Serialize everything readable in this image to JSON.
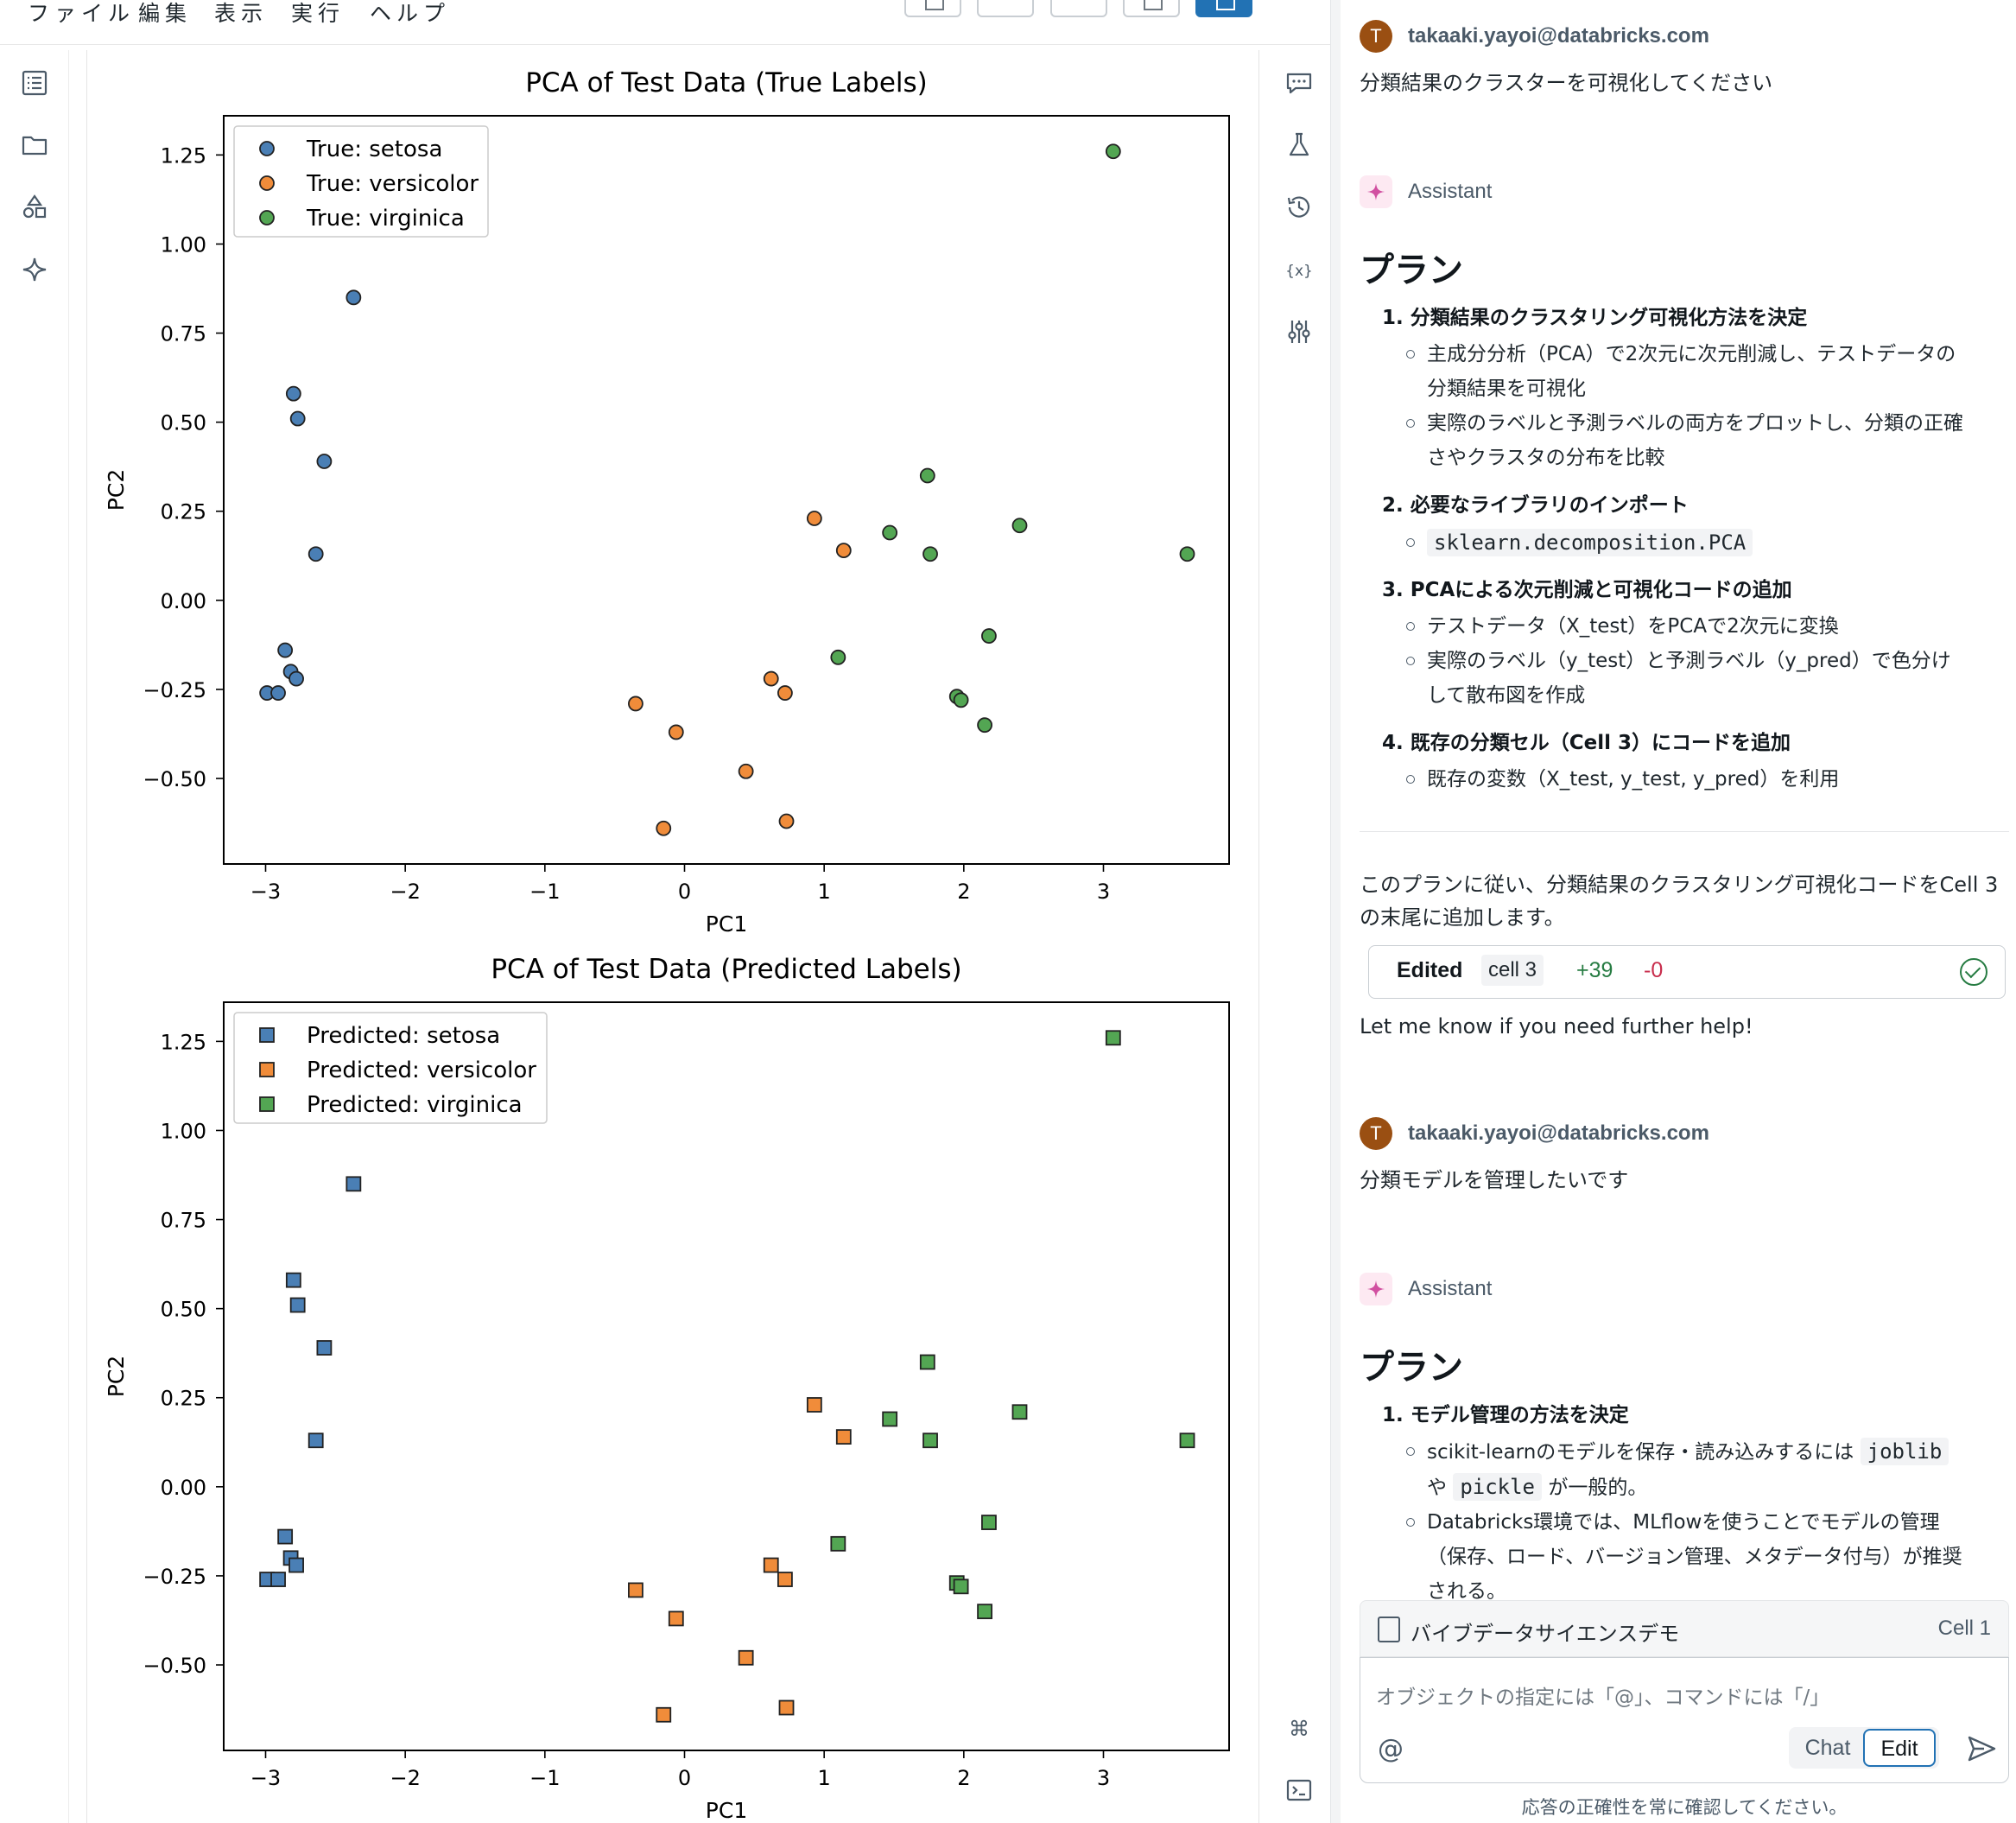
{
  "menu": [
    "ファイル",
    "編集",
    "表示",
    "実行",
    "ヘルプ"
  ],
  "plots": [
    {
      "title": "PCA of Test Data (True Labels)",
      "xlabel": "PC1",
      "ylabel": "PC2",
      "marker": "circle",
      "legend": [
        "True: setosa",
        "True: versicolor",
        "True: virginica"
      ]
    },
    {
      "title": "PCA of Test Data (Predicted Labels)",
      "xlabel": "PC1",
      "ylabel": "PC2",
      "marker": "square",
      "legend": [
        "Predicted: setosa",
        "Predicted: versicolor",
        "Predicted: virginica"
      ]
    }
  ],
  "chart_data": {
    "type": "scatter",
    "xlim": [
      -3.3,
      3.9
    ],
    "ylim": [
      -0.74,
      1.36
    ],
    "xticks": [
      -3,
      -2,
      -1,
      0,
      1,
      2,
      3
    ],
    "yticks": [
      -0.5,
      -0.25,
      0.0,
      0.25,
      0.5,
      0.75,
      1.0,
      1.25
    ],
    "xtick_labels": [
      "−3",
      "−2",
      "−1",
      "0",
      "1",
      "2",
      "3"
    ],
    "ytick_labels": [
      "−0.50",
      "−0.25",
      "0.00",
      "0.25",
      "0.50",
      "0.75",
      "1.00",
      "1.25"
    ],
    "legend_position": "top-left",
    "colors": {
      "setosa": "#4a7fb5",
      "versicolor": "#f08c3a",
      "virginica": "#53a653"
    },
    "series": [
      {
        "name": "setosa",
        "points": [
          [
            -2.37,
            0.85
          ],
          [
            -2.8,
            0.58
          ],
          [
            -2.77,
            0.51
          ],
          [
            -2.58,
            0.39
          ],
          [
            -2.64,
            0.13
          ],
          [
            -2.86,
            -0.14
          ],
          [
            -2.82,
            -0.2
          ],
          [
            -2.78,
            -0.22
          ],
          [
            -2.99,
            -0.26
          ],
          [
            -2.91,
            -0.26
          ]
        ]
      },
      {
        "name": "versicolor",
        "points": [
          [
            0.93,
            0.23
          ],
          [
            1.14,
            0.14
          ],
          [
            0.62,
            -0.22
          ],
          [
            0.72,
            -0.26
          ],
          [
            -0.35,
            -0.29
          ],
          [
            -0.06,
            -0.37
          ],
          [
            0.44,
            -0.48
          ],
          [
            -0.15,
            -0.64
          ],
          [
            0.73,
            -0.62
          ]
        ]
      },
      {
        "name": "virginica",
        "points": [
          [
            3.07,
            1.26
          ],
          [
            1.74,
            0.35
          ],
          [
            1.47,
            0.19
          ],
          [
            1.76,
            0.13
          ],
          [
            2.4,
            0.21
          ],
          [
            3.6,
            0.13
          ],
          [
            2.18,
            -0.1
          ],
          [
            1.1,
            -0.16
          ],
          [
            1.95,
            -0.27
          ],
          [
            1.98,
            -0.28
          ],
          [
            2.15,
            -0.35
          ]
        ]
      }
    ]
  },
  "chat": {
    "user_initial": "T",
    "user_email": "takaaki.yayoi@databricks.com",
    "assistant_name": "Assistant",
    "msg1": "分類結果のクラスターを可視化してください",
    "plan_heading": "プラン",
    "plan1": {
      "s1": "1. 分類結果のクラスタリング可視化方法を決定",
      "s1b1a": "主成分分析（PCA）で2次元に次元削減し、テストデータの",
      "s1b1b": "分類結果を可視化",
      "s1b2a": "実際のラベルと予測ラベルの両方をプロットし、分類の正確",
      "s1b2b": "さやクラスタの分布を比較",
      "s2": "2. 必要なライブラリのインポート",
      "s2b1": "sklearn.decomposition.PCA",
      "s3": "3. PCAによる次元削減と可視化コードの追加",
      "s3b1": "テストデータ（X_test）をPCAで2次元に変換",
      "s3b2a": "実際のラベル（y_test）と予測ラベル（y_pred）で色分け",
      "s3b2b": "して散布図を作成",
      "s4": "4. 既存の分類セル（Cell 3）にコードを追加",
      "s4b1": "既存の変数（X_test, y_test, y_pred）を利用"
    },
    "summary1a": "このプランに従い、分類結果のクラスタリング可視化コードをCell 3",
    "summary1b": "の末尾に追加します。",
    "edited": {
      "label": "Edited",
      "cell": "cell 3",
      "plus": "+39",
      "minus": "-0"
    },
    "help": "Let me know if you need further help!",
    "msg2": "分類モデルを管理したいです",
    "plan2": {
      "s1": "1. モデル管理の方法を決定",
      "b1a_pre": "scikit-learnのモデルを保存・読み込みするには",
      "b1a_code": "joblib",
      "b1b_pre": "や",
      "b1b_code": "pickle",
      "b1b_post": "が一般的。",
      "b2a": "Databricks環境では、MLflowを使うことでモデルの管理",
      "b2b": "（保存、ロード、バージョン管理、メタデータ付与）が推奨",
      "b2c": "される。"
    },
    "context_notebook": "バイブデータサイエンスデモ",
    "context_cell": "Cell 1",
    "input_placeholder": "オブジェクトの指定には「@」、コマンドには「/」",
    "at_symbol": "@",
    "mode_chat": "Chat",
    "mode_edit": "Edit",
    "disclaimer": "応答の正確性を常に確認してください。"
  }
}
